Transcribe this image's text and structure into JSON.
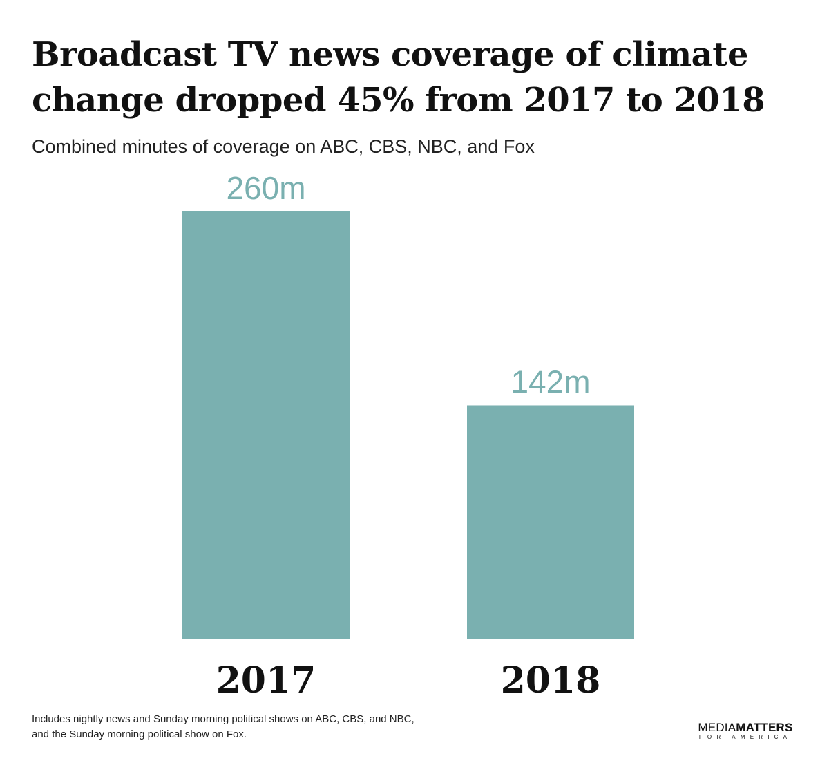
{
  "chart_data": {
    "type": "bar",
    "title": "Broadcast TV news coverage of climate change dropped 45% from 2017 to 2018",
    "subtitle": "Combined minutes of coverage on ABC, CBS, NBC, and Fox",
    "categories": [
      "2017",
      "2018"
    ],
    "values": [
      260,
      142
    ],
    "data_labels": [
      "260m",
      "142m"
    ],
    "unit": "minutes",
    "ylim": [
      0,
      260
    ],
    "grid": false,
    "legend": "none",
    "bar_color": "#7ab0b0",
    "label_color": "#7ab0b0"
  },
  "footnote": "Includes nightly news and Sunday morning political shows on ABC, CBS, and NBC, and the Sunday morning political show on Fox.",
  "logo": {
    "name_light": "MEDIA",
    "name_bold": "MATTERS",
    "tagline": "FOR AMERICA"
  }
}
